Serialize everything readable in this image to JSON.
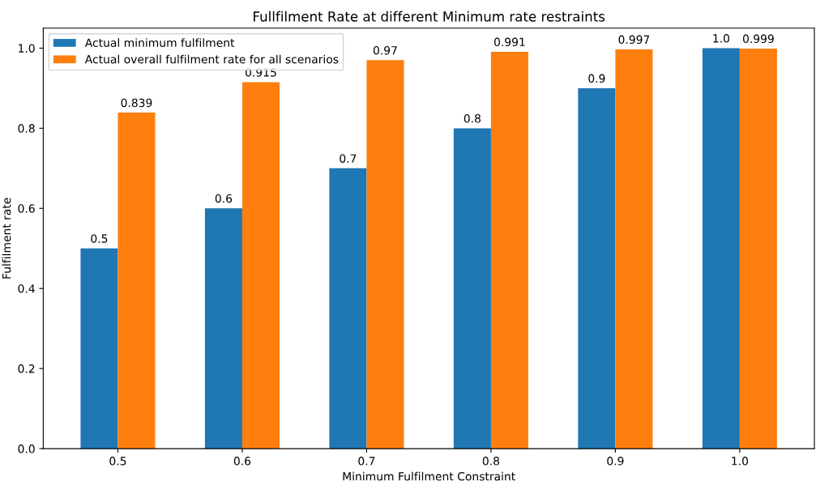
{
  "chart_data": {
    "type": "bar",
    "title": "Fullfilment Rate at different Minimum rate restraints",
    "xlabel": "Minimum Fulfilment Constraint",
    "ylabel": "Fulfilment rate",
    "categories": [
      "0.5",
      "0.6",
      "0.7",
      "0.8",
      "0.9",
      "1.0"
    ],
    "series": [
      {
        "name": "Actual minimum fulfilment",
        "color": "#1f77b4",
        "values": [
          0.5,
          0.6,
          0.7,
          0.8,
          0.9,
          1.0
        ],
        "value_labels": [
          "0.5",
          "0.6",
          "0.7",
          "0.8",
          "0.9",
          "1.0"
        ]
      },
      {
        "name": "Actual overall fulfilment rate for all scenarios",
        "color": "#ff7f0e",
        "values": [
          0.839,
          0.915,
          0.97,
          0.991,
          0.997,
          0.999
        ],
        "value_labels": [
          "0.839",
          "0.915",
          "0.97",
          "0.991",
          "0.997",
          "0.999"
        ]
      }
    ],
    "ylim": [
      0,
      1.05
    ],
    "yticks": [
      {
        "value": 0,
        "label": "0.0"
      },
      {
        "value": 0.2,
        "label": "0.2"
      },
      {
        "value": 0.4,
        "label": "0.4"
      },
      {
        "value": 0.6,
        "label": "0.6"
      },
      {
        "value": 0.8,
        "label": "0.8"
      },
      {
        "value": 1.0,
        "label": "1.0"
      }
    ],
    "legend": "top left",
    "grid": false
  }
}
